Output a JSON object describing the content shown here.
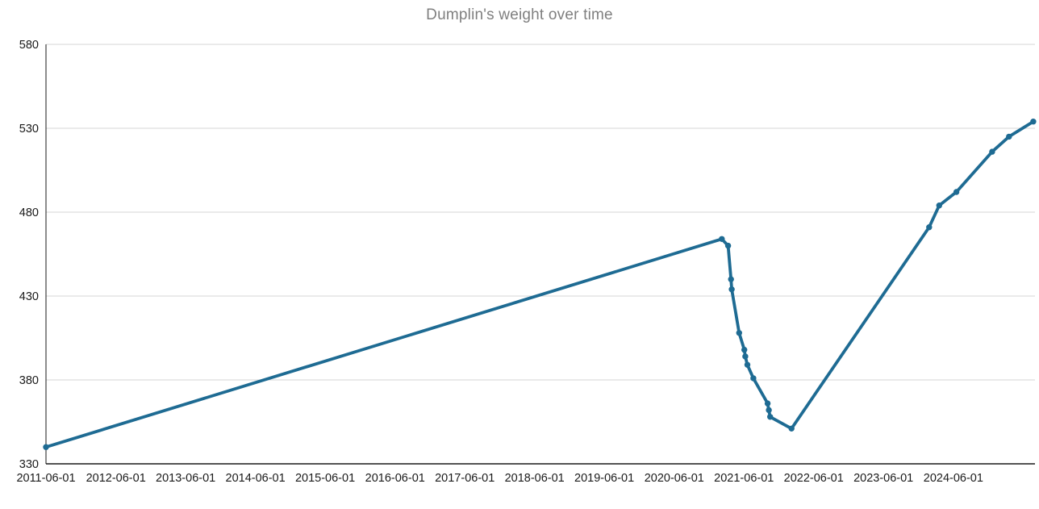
{
  "chart_data": {
    "type": "line",
    "title": "Dumplin's weight over time",
    "xlabel": "",
    "ylabel": "",
    "legend": "none",
    "grid": "horizontal",
    "x_axis": {
      "tick_labels": [
        "2011-06-01",
        "2012-06-01",
        "2013-06-01",
        "2014-06-01",
        "2015-06-01",
        "2016-06-01",
        "2017-06-01",
        "2018-06-01",
        "2019-06-01",
        "2020-06-01",
        "2021-06-01",
        "2022-06-01",
        "2023-06-01",
        "2024-06-01"
      ],
      "range": [
        "2011-06-01",
        "2025-08-02"
      ]
    },
    "y_axis": {
      "tick_labels": [
        330,
        380,
        430,
        480,
        530,
        580
      ],
      "range": [
        330,
        580
      ]
    },
    "series": [
      {
        "name": "Dumplin's weight",
        "marker": "circle",
        "points": [
          [
            "2011-06-01",
            340
          ],
          [
            "2021-02-05",
            464
          ],
          [
            "2021-03-10",
            460
          ],
          [
            "2021-03-25",
            440
          ],
          [
            "2021-03-29",
            434
          ],
          [
            "2021-05-07",
            408
          ],
          [
            "2021-06-03",
            398
          ],
          [
            "2021-06-08",
            394
          ],
          [
            "2021-06-19",
            389
          ],
          [
            "2021-07-20",
            381
          ],
          [
            "2021-10-03",
            366
          ],
          [
            "2021-10-09",
            362
          ],
          [
            "2021-10-16",
            358
          ],
          [
            "2022-02-05",
            351
          ],
          [
            "2024-01-26",
            471
          ],
          [
            "2024-03-19",
            484
          ],
          [
            "2024-06-17",
            492
          ],
          [
            "2024-12-21",
            516
          ],
          [
            "2025-03-19",
            525
          ],
          [
            "2025-07-24",
            534
          ]
        ]
      }
    ],
    "colors": {
      "line": "#1e6b93",
      "marker": "#1e6b93",
      "title": "#7f7f7f",
      "grid": "#d6d6d6",
      "axis": "#1a1a1a",
      "tick_text": "#1a1a1a",
      "background": "#ffffff"
    }
  }
}
